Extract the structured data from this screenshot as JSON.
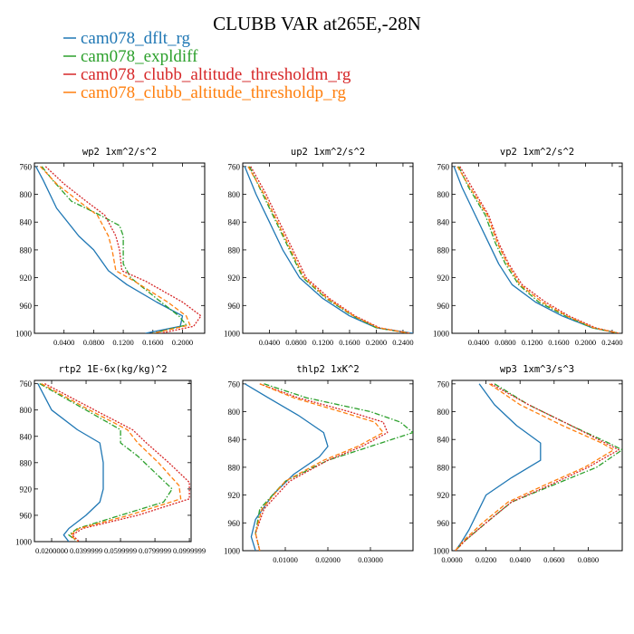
{
  "figure": {
    "title": "CLUBB VAR at265E,-28N"
  },
  "legend": [
    {
      "name": "cam078_dflt_rg",
      "color": "#1f77b4",
      "dash": "solid"
    },
    {
      "name": "cam078_expldiff",
      "color": "#2ca02c",
      "dash": "dashdot"
    },
    {
      "name": "cam078_clubb_altitude_thresholdm_rg",
      "color": "#d62728",
      "dash": "dot"
    },
    {
      "name": "cam078_clubb_altitude_thresholdp_rg",
      "color": "#ff7f0e",
      "dash": "dash"
    }
  ],
  "chart_data": [
    {
      "type": "line",
      "title": "wp2   1xm^2/s^2",
      "xlim": [
        0,
        0.23
      ],
      "ylim": [
        1000,
        755
      ],
      "xticks": [
        0.04,
        0.08,
        0.12,
        0.16,
        0.2
      ],
      "xtick_labels": [
        "0.0400",
        "0.0800",
        "0.1200",
        "0.1600",
        "0.2000"
      ],
      "yticks": [
        760,
        800,
        840,
        880,
        920,
        960,
        1000
      ],
      "ytick_labels": [
        "760",
        "800",
        "840",
        "880",
        "920",
        "960",
        "1000"
      ],
      "series": [
        {
          "name": "cam078_dflt_rg",
          "color": "#1f77b4",
          "dash": "solid",
          "x": [
            0.002,
            0.012,
            0.03,
            0.06,
            0.08,
            0.1,
            0.125,
            0.165,
            0.2,
            0.197,
            0.15
          ],
          "y": [
            760,
            780,
            820,
            860,
            880,
            910,
            930,
            955,
            975,
            990,
            1000
          ]
        },
        {
          "name": "cam078_expldiff",
          "color": "#2ca02c",
          "dash": "dashdot",
          "x": [
            0.01,
            0.025,
            0.05,
            0.085,
            0.115,
            0.12,
            0.12,
            0.13,
            0.165,
            0.195,
            0.205,
            0.16
          ],
          "y": [
            760,
            780,
            810,
            828,
            845,
            860,
            900,
            920,
            950,
            975,
            988,
            1000
          ]
        },
        {
          "name": "cam078_clubb_altitude_thresholdm_rg",
          "color": "#d62728",
          "dash": "dot",
          "x": [
            0.015,
            0.04,
            0.07,
            0.095,
            0.11,
            0.115,
            0.118,
            0.15,
            0.2,
            0.225,
            0.215,
            0.17
          ],
          "y": [
            760,
            785,
            810,
            830,
            860,
            880,
            910,
            925,
            955,
            975,
            990,
            1000
          ]
        },
        {
          "name": "cam078_clubb_altitude_thresholdp_rg",
          "color": "#ff7f0e",
          "dash": "dash",
          "x": [
            0.008,
            0.03,
            0.06,
            0.085,
            0.1,
            0.105,
            0.11,
            0.135,
            0.18,
            0.205,
            0.21,
            0.16
          ],
          "y": [
            760,
            785,
            810,
            830,
            860,
            880,
            910,
            925,
            955,
            975,
            988,
            1000
          ]
        }
      ]
    },
    {
      "type": "line",
      "title": "up2   1xm^2/s^2",
      "xlim": [
        0,
        0.255
      ],
      "ylim": [
        1000,
        755
      ],
      "xticks": [
        0.04,
        0.08,
        0.12,
        0.16,
        0.2,
        0.24
      ],
      "xtick_labels": [
        "0.0400",
        "0.0800",
        "0.1200",
        "0.1600",
        "0.2000",
        "0.2400"
      ],
      "yticks": [
        760,
        800,
        840,
        880,
        920,
        960,
        1000
      ],
      "ytick_labels": [
        "760",
        "800",
        "840",
        "880",
        "920",
        "960",
        "1000"
      ],
      "series": [
        {
          "name": "cam078_dflt_rg",
          "color": "#1f77b4",
          "dash": "solid",
          "x": [
            0.003,
            0.02,
            0.04,
            0.06,
            0.085,
            0.12,
            0.16,
            0.2,
            0.255
          ],
          "y": [
            760,
            800,
            840,
            880,
            920,
            950,
            975,
            992,
            1000
          ]
        },
        {
          "name": "cam078_expldiff",
          "color": "#2ca02c",
          "dash": "dashdot",
          "x": [
            0.01,
            0.03,
            0.05,
            0.07,
            0.09,
            0.125,
            0.165,
            0.2,
            0.25
          ],
          "y": [
            760,
            800,
            840,
            880,
            920,
            950,
            975,
            992,
            1000
          ]
        },
        {
          "name": "cam078_clubb_altitude_thresholdm_rg",
          "color": "#d62728",
          "dash": "dot",
          "x": [
            0.012,
            0.035,
            0.055,
            0.075,
            0.095,
            0.13,
            0.168,
            0.205,
            0.25
          ],
          "y": [
            760,
            800,
            840,
            880,
            920,
            950,
            975,
            992,
            1000
          ]
        },
        {
          "name": "cam078_clubb_altitude_thresholdp_rg",
          "color": "#ff7f0e",
          "dash": "dash",
          "x": [
            0.008,
            0.032,
            0.052,
            0.072,
            0.092,
            0.127,
            0.166,
            0.203,
            0.25
          ],
          "y": [
            760,
            800,
            840,
            880,
            920,
            950,
            975,
            992,
            1000
          ]
        }
      ]
    },
    {
      "type": "line",
      "title": "vp2   1xm^2/s^2",
      "xlim": [
        0,
        0.255
      ],
      "ylim": [
        1000,
        755
      ],
      "xticks": [
        0.04,
        0.08,
        0.12,
        0.16,
        0.2,
        0.24
      ],
      "xtick_labels": [
        "0.0400",
        "0.0800",
        "0.1200",
        "0.1600",
        "0.2000",
        "0.2400"
      ],
      "yticks": [
        760,
        800,
        840,
        880,
        920,
        960,
        1000
      ],
      "ytick_labels": [
        "760",
        "800",
        "840",
        "880",
        "920",
        "960",
        "1000"
      ],
      "series": [
        {
          "name": "cam078_dflt_rg",
          "color": "#1f77b4",
          "dash": "solid",
          "x": [
            0.003,
            0.015,
            0.035,
            0.055,
            0.07,
            0.09,
            0.125,
            0.165,
            0.21,
            0.25
          ],
          "y": [
            760,
            790,
            830,
            870,
            900,
            930,
            955,
            975,
            992,
            1000
          ]
        },
        {
          "name": "cam078_expldiff",
          "color": "#2ca02c",
          "dash": "dashdot",
          "x": [
            0.01,
            0.025,
            0.05,
            0.065,
            0.08,
            0.1,
            0.13,
            0.17,
            0.21,
            0.25
          ],
          "y": [
            760,
            790,
            830,
            870,
            900,
            930,
            955,
            975,
            992,
            1000
          ]
        },
        {
          "name": "cam078_clubb_altitude_thresholdm_rg",
          "color": "#d62728",
          "dash": "dot",
          "x": [
            0.012,
            0.03,
            0.055,
            0.07,
            0.085,
            0.105,
            0.14,
            0.175,
            0.215,
            0.25
          ],
          "y": [
            760,
            790,
            830,
            870,
            900,
            930,
            955,
            975,
            992,
            1000
          ]
        },
        {
          "name": "cam078_clubb_altitude_thresholdp_rg",
          "color": "#ff7f0e",
          "dash": "dash",
          "x": [
            0.008,
            0.027,
            0.053,
            0.068,
            0.083,
            0.102,
            0.135,
            0.172,
            0.212,
            0.25
          ],
          "y": [
            760,
            790,
            830,
            870,
            900,
            930,
            955,
            975,
            992,
            1000
          ]
        }
      ]
    },
    {
      "type": "line",
      "title": "rtp2   1E-6x(kg/kg)^2",
      "xlim": [
        0.01,
        0.101
      ],
      "ylim": [
        1000,
        755
      ],
      "xticks": [
        0.02,
        0.04,
        0.06,
        0.08,
        0.1
      ],
      "xtick_labels": [
        "0.0200000",
        "0.0399999",
        "0.0599999",
        "0.0799999",
        "0.0999999"
      ],
      "yticks": [
        760,
        800,
        840,
        880,
        920,
        960,
        1000
      ],
      "ytick_labels": [
        "760",
        "800",
        "840",
        "880",
        "920",
        "960",
        "1000"
      ],
      "series": [
        {
          "name": "cam078_dflt_rg",
          "color": "#1f77b4",
          "dash": "solid",
          "x": [
            0.012,
            0.02,
            0.035,
            0.048,
            0.05,
            0.05,
            0.048,
            0.04,
            0.03,
            0.027,
            0.03
          ],
          "y": [
            760,
            800,
            830,
            850,
            880,
            920,
            940,
            960,
            980,
            990,
            1000
          ]
        },
        {
          "name": "cam078_expldiff",
          "color": "#2ca02c",
          "dash": "dashdot",
          "x": [
            0.013,
            0.04,
            0.06,
            0.06,
            0.07,
            0.09,
            0.085,
            0.06,
            0.035,
            0.03,
            0.035
          ],
          "y": [
            760,
            800,
            830,
            850,
            870,
            920,
            940,
            960,
            980,
            990,
            1000
          ]
        },
        {
          "name": "cam078_clubb_altitude_thresholdm_rg",
          "color": "#d62728",
          "dash": "dot",
          "x": [
            0.016,
            0.045,
            0.067,
            0.075,
            0.088,
            0.1,
            0.1,
            0.07,
            0.038,
            0.032,
            0.036
          ],
          "y": [
            760,
            800,
            830,
            850,
            880,
            910,
            935,
            960,
            980,
            990,
            1000
          ]
        },
        {
          "name": "cam078_clubb_altitude_thresholdp_rg",
          "color": "#ff7f0e",
          "dash": "dash",
          "x": [
            0.014,
            0.042,
            0.064,
            0.07,
            0.082,
            0.094,
            0.095,
            0.065,
            0.036,
            0.031,
            0.035
          ],
          "y": [
            760,
            800,
            830,
            850,
            880,
            915,
            935,
            960,
            980,
            990,
            1000
          ]
        }
      ]
    },
    {
      "type": "line",
      "title": "thlp2   1xK^2",
      "xlim": [
        0,
        0.04
      ],
      "ylim": [
        1000,
        755
      ],
      "xticks": [
        0.01,
        0.02,
        0.03
      ],
      "xtick_labels": [
        "0.01000",
        "0.02000",
        "0.03000"
      ],
      "yticks": [
        760,
        800,
        840,
        880,
        920,
        960,
        1000
      ],
      "ytick_labels": [
        "760",
        "800",
        "840",
        "880",
        "920",
        "960",
        "1000"
      ],
      "series": [
        {
          "name": "cam078_dflt_rg",
          "color": "#1f77b4",
          "dash": "solid",
          "x": [
            0.0005,
            0.006,
            0.013,
            0.019,
            0.02,
            0.018,
            0.012,
            0.007,
            0.003,
            0.002,
            0.003
          ],
          "y": [
            760,
            780,
            805,
            830,
            850,
            865,
            890,
            920,
            955,
            980,
            1000
          ]
        },
        {
          "name": "cam078_expldiff",
          "color": "#2ca02c",
          "dash": "dashdot",
          "x": [
            0.005,
            0.015,
            0.03,
            0.037,
            0.04,
            0.03,
            0.02,
            0.01,
            0.004,
            0.003,
            0.004
          ],
          "y": [
            760,
            780,
            800,
            815,
            830,
            850,
            870,
            900,
            940,
            975,
            1000
          ]
        },
        {
          "name": "cam078_clubb_altitude_thresholdm_rg",
          "color": "#d62728",
          "dash": "dot",
          "x": [
            0.004,
            0.013,
            0.025,
            0.033,
            0.034,
            0.028,
            0.02,
            0.011,
            0.005,
            0.003,
            0.004
          ],
          "y": [
            760,
            780,
            800,
            815,
            830,
            850,
            870,
            900,
            940,
            975,
            1000
          ]
        },
        {
          "name": "cam078_clubb_altitude_thresholdp_rg",
          "color": "#ff7f0e",
          "dash": "dash",
          "x": [
            0.004,
            0.012,
            0.023,
            0.031,
            0.033,
            0.027,
            0.019,
            0.01,
            0.0045,
            0.003,
            0.004
          ],
          "y": [
            760,
            780,
            800,
            815,
            830,
            850,
            870,
            900,
            940,
            975,
            1000
          ]
        }
      ]
    },
    {
      "type": "line",
      "title": "wp3   1xm^3/s^3",
      "xlim": [
        0,
        0.1
      ],
      "ylim": [
        1000,
        755
      ],
      "xticks": [
        0,
        0.02,
        0.04,
        0.06,
        0.08
      ],
      "xtick_labels": [
        "0.0000",
        "0.0200",
        "0.0400",
        "0.0600",
        "0.0800"
      ],
      "yticks": [
        760,
        800,
        840,
        880,
        920,
        960,
        1000
      ],
      "ytick_labels": [
        "760",
        "800",
        "840",
        "880",
        "920",
        "960",
        "1000"
      ],
      "series": [
        {
          "name": "cam078_dflt_rg",
          "color": "#1f77b4",
          "dash": "solid",
          "x": [
            0.016,
            0.025,
            0.038,
            0.052,
            0.052,
            0.035,
            0.02,
            0.015,
            0.01,
            0.005,
            0.002
          ],
          "y": [
            760,
            790,
            820,
            845,
            870,
            895,
            920,
            945,
            970,
            990,
            1000
          ]
        },
        {
          "name": "cam078_expldiff",
          "color": "#2ca02c",
          "dash": "dashdot",
          "x": [
            0.025,
            0.045,
            0.07,
            0.092,
            0.1,
            0.085,
            0.06,
            0.035,
            0.02,
            0.008,
            0.002
          ],
          "y": [
            760,
            790,
            820,
            845,
            855,
            880,
            905,
            930,
            960,
            985,
            1000
          ]
        },
        {
          "name": "cam078_clubb_altitude_thresholdm_rg",
          "color": "#d62728",
          "dash": "dot",
          "x": [
            0.023,
            0.045,
            0.07,
            0.09,
            0.098,
            0.08,
            0.058,
            0.035,
            0.02,
            0.008,
            0.002
          ],
          "y": [
            760,
            790,
            820,
            845,
            855,
            880,
            905,
            930,
            960,
            985,
            1000
          ]
        },
        {
          "name": "cam078_clubb_altitude_thresholdp_rg",
          "color": "#ff7f0e",
          "dash": "dash",
          "x": [
            0.022,
            0.04,
            0.065,
            0.088,
            0.095,
            0.078,
            0.055,
            0.033,
            0.018,
            0.007,
            0.002
          ],
          "y": [
            760,
            790,
            820,
            845,
            855,
            880,
            905,
            930,
            960,
            985,
            1000
          ]
        }
      ]
    }
  ]
}
